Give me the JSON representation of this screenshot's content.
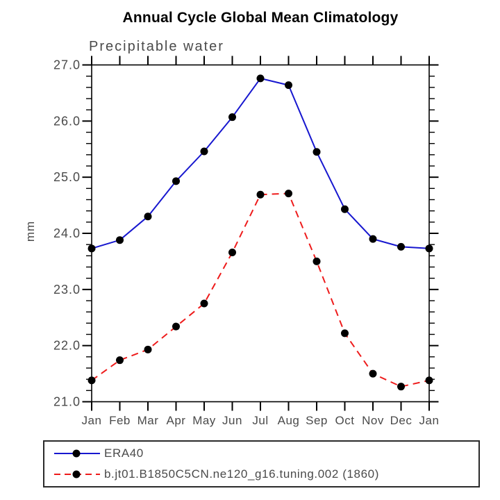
{
  "title": "Annual Cycle Global Mean Climatology",
  "subtitle": "Precipitable water",
  "chart_data": {
    "type": "line",
    "categories": [
      "Jan",
      "Feb",
      "Mar",
      "Apr",
      "May",
      "Jun",
      "Jul",
      "Aug",
      "Sep",
      "Oct",
      "Nov",
      "Dec",
      "Jan"
    ],
    "series": [
      {
        "name": "ERA40",
        "color": "#1717cf",
        "line_style": "solid",
        "marker": "black-filled-circle",
        "marker_color": "#000000",
        "values": [
          23.73,
          23.88,
          24.3,
          24.93,
          25.46,
          26.07,
          26.76,
          26.64,
          25.45,
          24.43,
          23.9,
          23.76,
          23.73
        ]
      },
      {
        "name": "b.jt01.B1850C5CN.ne120_g16.tuning.002 (1860)",
        "color": "#ee1b1b",
        "line_style": "dashed",
        "marker": "black-filled-circle",
        "marker_color": "#000000",
        "values": [
          21.38,
          21.74,
          21.93,
          22.34,
          22.75,
          23.66,
          24.69,
          24.71,
          23.5,
          22.22,
          21.5,
          21.27,
          21.38
        ]
      }
    ],
    "xlabel": "",
    "ylabel": "mm",
    "ylim": [
      21.0,
      27.0
    ],
    "ytick_major": [
      21.0,
      22.0,
      23.0,
      24.0,
      25.0,
      26.0,
      27.0
    ],
    "ytick_labels": [
      "21.0",
      "22.0",
      "23.0",
      "24.0",
      "25.0",
      "26.0",
      "27.0"
    ],
    "ytick_minor_step": 0.2,
    "grid": false,
    "frame": "box-with-outward-ticks",
    "legend_position": "below-plot-left"
  }
}
